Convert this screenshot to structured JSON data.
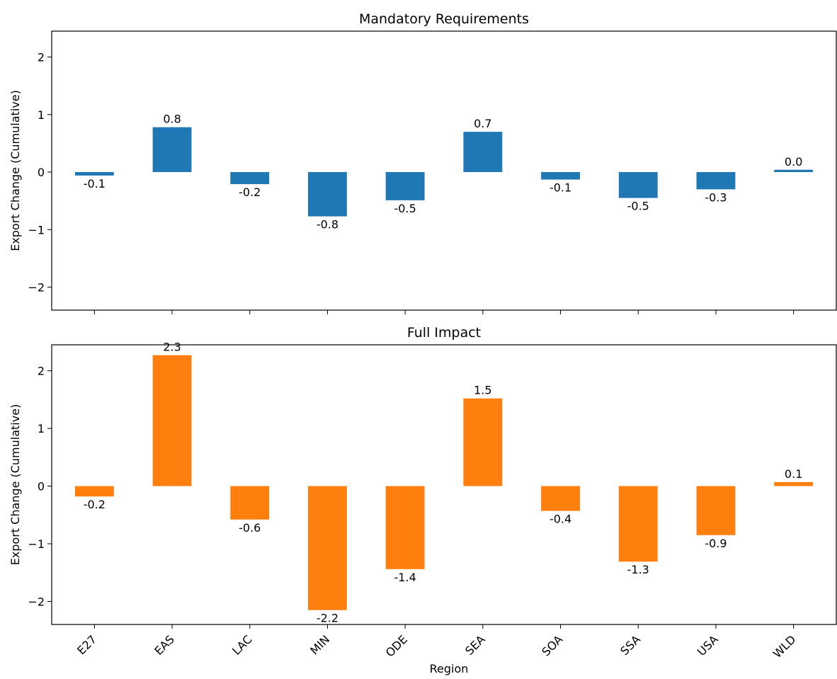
{
  "figure": {
    "xlabel": "Region",
    "bar_labels_note": ""
  },
  "chart_data": [
    {
      "type": "bar",
      "title": "Mandatory Requirements",
      "xlabel": "",
      "ylabel": "Export Change (Cumulative)",
      "categories": [
        "E27",
        "EAS",
        "LAC",
        "MIN",
        "ODE",
        "SEA",
        "SOA",
        "SSA",
        "USA",
        "WLD"
      ],
      "values": [
        -0.06,
        0.78,
        -0.21,
        -0.77,
        -0.49,
        0.7,
        -0.13,
        -0.45,
        -0.3,
        0.04
      ],
      "data_labels": [
        "-0.1",
        "0.8",
        "-0.2",
        "-0.8",
        "-0.5",
        "0.7",
        "-0.1",
        "-0.5",
        "-0.3",
        "0.0"
      ],
      "ylim": [
        -2.4,
        2.45
      ],
      "yticks": [
        -2,
        -1,
        0,
        1,
        2
      ],
      "ytick_labels": [
        "−2",
        "−1",
        "0",
        "1",
        "2"
      ],
      "color": "#1f77b4",
      "grid": false,
      "show_xticklabels": false
    },
    {
      "type": "bar",
      "title": "Full Impact",
      "xlabel": "Region",
      "ylabel": "Export Change (Cumulative)",
      "categories": [
        "E27",
        "EAS",
        "LAC",
        "MIN",
        "ODE",
        "SEA",
        "SOA",
        "SSA",
        "USA",
        "WLD"
      ],
      "values": [
        -0.18,
        2.27,
        -0.58,
        -2.15,
        -1.44,
        1.52,
        -0.43,
        -1.31,
        -0.85,
        0.07
      ],
      "data_labels": [
        "-0.2",
        "2.3",
        "-0.6",
        "-2.2",
        "-1.4",
        "1.5",
        "-0.4",
        "-1.3",
        "-0.9",
        "0.1"
      ],
      "ylim": [
        -2.4,
        2.45
      ],
      "yticks": [
        -2,
        -1,
        0,
        1,
        2
      ],
      "ytick_labels": [
        "−2",
        "−1",
        "0",
        "1",
        "2"
      ],
      "color": "#ff7f0e",
      "grid": false,
      "show_xticklabels": true
    }
  ]
}
